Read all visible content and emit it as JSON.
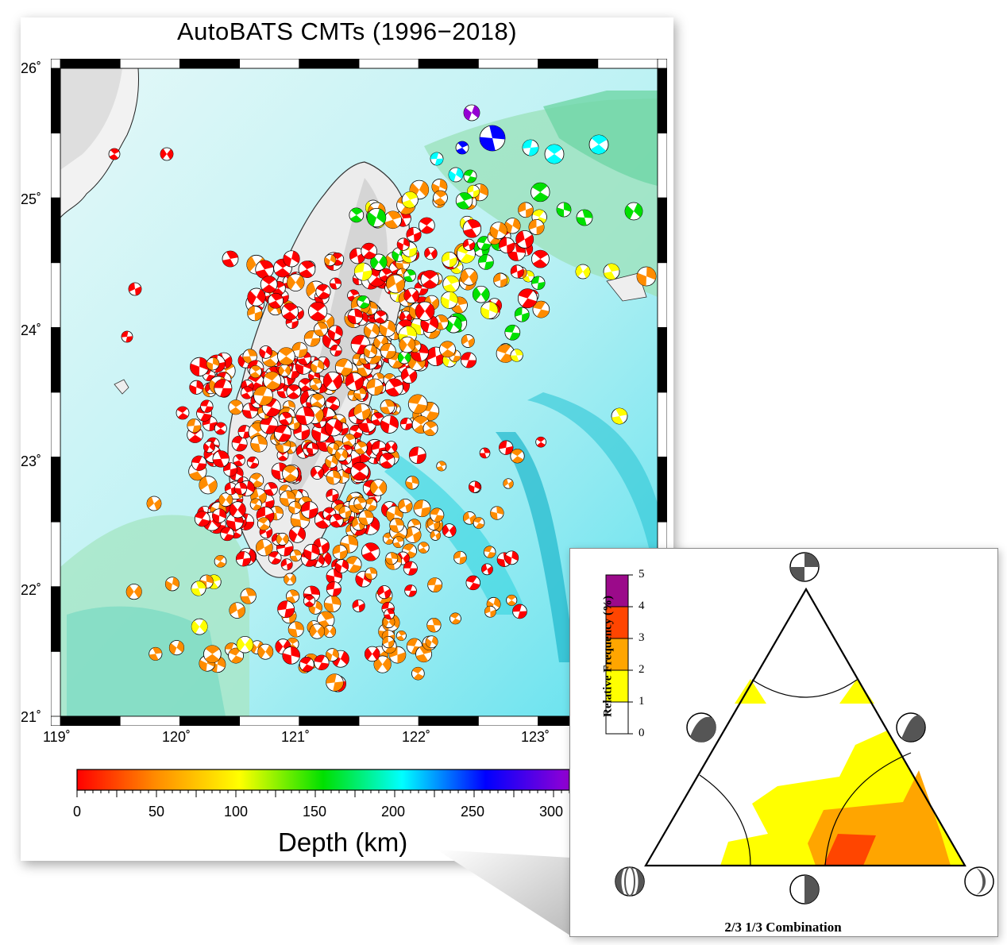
{
  "map": {
    "title": "AutoBATS CMTs (1996−2018)",
    "lat_labels": [
      "26˚",
      "25˚",
      "24˚",
      "23˚",
      "22˚",
      "21˚"
    ],
    "lon_labels": [
      "119˚",
      "120˚",
      "121˚",
      "122˚",
      "123˚"
    ],
    "lat_range": [
      21,
      26
    ],
    "lon_range": [
      119,
      124
    ]
  },
  "depth_colorbar": {
    "title": "Depth (km)",
    "ticks": [
      "0",
      "50",
      "100",
      "150",
      "200",
      "250",
      "300"
    ],
    "colors": [
      "#ff0000",
      "#ff8c00",
      "#ffff00",
      "#00e000",
      "#00ffff",
      "#0000ff",
      "#9400d3"
    ]
  },
  "ternary": {
    "title": "2/3 1/3 Combination",
    "frequency_label": "Relative Frequency (%)",
    "frequency_ticks": [
      "5",
      "4",
      "3",
      "2",
      "1",
      "0"
    ],
    "frequency_colors": [
      "#ffffff",
      "#ffff00",
      "#ffa500",
      "#ff4500",
      "#9b0a8a"
    ]
  },
  "icons": {
    "focal_mechanism": "beachball-icon",
    "bathymetry": "shaded-relief"
  }
}
